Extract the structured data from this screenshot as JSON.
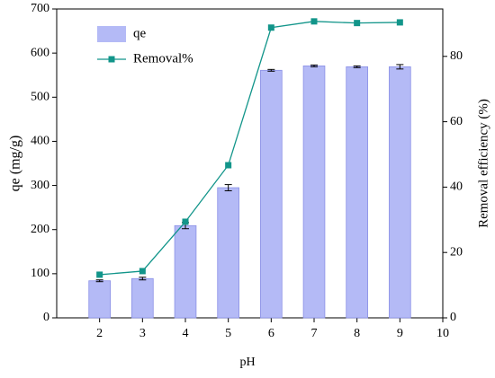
{
  "chart_data": {
    "type": "bar",
    "x": [
      2,
      3,
      4,
      5,
      6,
      7,
      8,
      9
    ],
    "series": [
      {
        "name": "qe",
        "type": "bar",
        "color": "#b4baf6",
        "values": [
          84,
          89,
          209,
          295,
          561,
          571,
          569,
          569
        ],
        "errors": [
          2,
          3,
          7,
          7,
          2,
          2,
          2,
          5
        ]
      },
      {
        "name": "Removal%",
        "type": "line",
        "axis": "y2",
        "color": "#12958a",
        "values": [
          13.2,
          14.3,
          29.4,
          46.7,
          88.8,
          90.7,
          90.2,
          90.4
        ]
      }
    ],
    "xlabel": "pH",
    "ylabel": "qe (mg/g)",
    "y2label": "Removal efficiency (%)",
    "xlim": [
      1,
      10
    ],
    "xticks": [
      2,
      3,
      4,
      5,
      6,
      7,
      8,
      9,
      10
    ],
    "ylim": [
      0,
      700
    ],
    "yticks": [
      0,
      100,
      200,
      300,
      400,
      500,
      600,
      700
    ],
    "y2lim": [
      0,
      94.5
    ],
    "y2ticks": [
      0,
      20,
      40,
      60,
      80
    ],
    "legend": "upper left"
  }
}
